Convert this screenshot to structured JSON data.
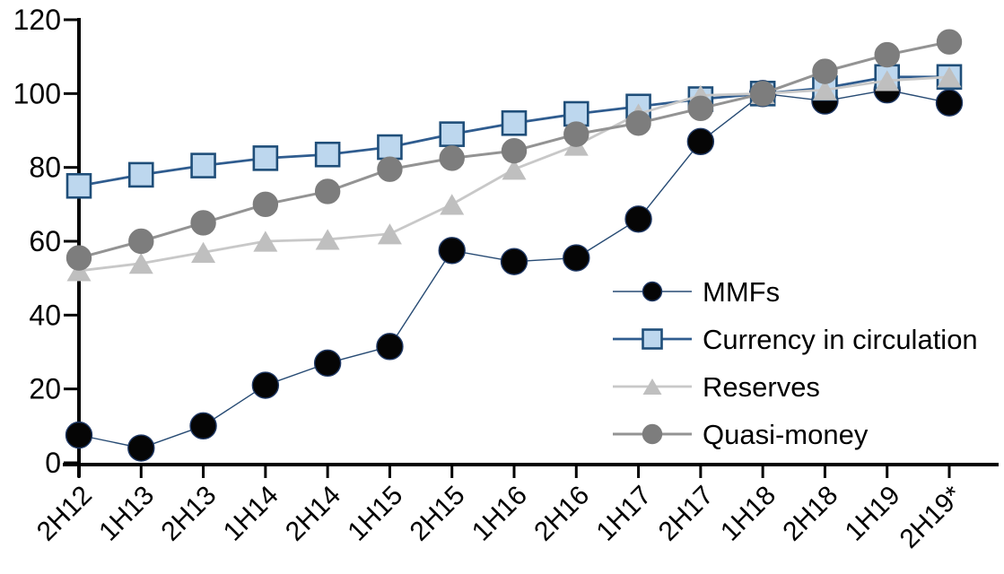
{
  "chart_data": {
    "type": "line",
    "title": "",
    "xlabel": "",
    "ylabel": "",
    "ylim": [
      0,
      120
    ],
    "yticks": [
      0,
      20,
      40,
      60,
      80,
      100,
      120
    ],
    "grid": false,
    "legend_position": "inside-right",
    "categories": [
      "2H12",
      "1H13",
      "2H13",
      "1H14",
      "2H14",
      "1H15",
      "2H15",
      "1H16",
      "2H16",
      "1H17",
      "2H17",
      "1H18",
      "2H18",
      "1H19",
      "2H19*"
    ],
    "series": [
      {
        "name": "MMFs",
        "marker": "circle",
        "marker_fill": "#050505",
        "marker_stroke": "#1f3864",
        "line_color": "#264a73",
        "line_width": 1.4,
        "marker_size": 14,
        "legend_marker_size": 10,
        "values": [
          7.5,
          4,
          10,
          21,
          27,
          31.5,
          57.5,
          54.5,
          55.5,
          66,
          87,
          100,
          98,
          101,
          97.5
        ]
      },
      {
        "name": "Currency in circulation",
        "marker": "square",
        "marker_fill": "#bdd7ee",
        "marker_stroke": "#1f4e79",
        "line_color": "#2f5c8f",
        "line_width": 2.8,
        "marker_size": 26,
        "legend_marker_size": 21,
        "values": [
          75,
          78,
          80.5,
          82.5,
          83.5,
          85.5,
          89,
          92,
          94.5,
          96.5,
          98.5,
          100,
          101.5,
          104.5,
          104.5
        ]
      },
      {
        "name": "Reserves",
        "marker": "triangle",
        "marker_fill": "#bfbfbf",
        "marker_stroke": "#bfbfbf",
        "line_color": "#c8c8c8",
        "line_width": 2.8,
        "marker_size": 27,
        "legend_marker_size": 21,
        "values": [
          52,
          54,
          57,
          60,
          60.5,
          62,
          70,
          79.5,
          86,
          94.5,
          99.5,
          100,
          101,
          103.5,
          104.5
        ]
      },
      {
        "name": "Quasi-money",
        "marker": "circle",
        "marker_fill": "#7d7d7d",
        "marker_stroke": "#7d7d7d",
        "line_color": "#939393",
        "line_width": 3,
        "marker_size": 13.5,
        "legend_marker_size": 10.5,
        "values": [
          55.5,
          60,
          65,
          70,
          73.5,
          79.5,
          82.5,
          84.5,
          89,
          92,
          96,
          100,
          106,
          110.5,
          114
        ]
      }
    ],
    "axis_color": "#000000",
    "text_color": "#000000"
  }
}
